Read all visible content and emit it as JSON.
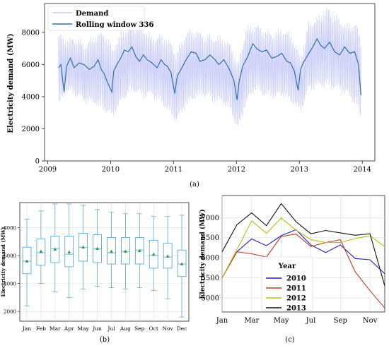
{
  "chart_data": [
    {
      "type": "line",
      "panel_label": "(a)",
      "ylabel": "Electricity demand (MW)",
      "xticks": [
        "2009",
        "2010",
        "2011",
        "2012",
        "2013",
        "2014"
      ],
      "yticks": [
        "0",
        "2000",
        "4000",
        "6000",
        "8000"
      ],
      "xlim": [
        2008.95,
        2014.2
      ],
      "ylim": [
        0,
        9800
      ],
      "legend": [
        "Demand",
        "Rolling window 336"
      ],
      "legend_position": "top-left",
      "colors": {
        "demand": "#c9cdf7",
        "rolling": "#2f6fad"
      },
      "series": [
        {
          "name": "Rolling window 336",
          "x": [
            2009.17,
            2009.21,
            2009.26,
            2009.3,
            2009.36,
            2009.42,
            2009.5,
            2009.58,
            2009.66,
            2009.74,
            2009.8,
            2009.85,
            2009.9,
            2009.96,
            2010.02,
            2010.05,
            2010.1,
            2010.16,
            2010.22,
            2010.28,
            2010.34,
            2010.4,
            2010.46,
            2010.52,
            2010.58,
            2010.66,
            2010.74,
            2010.8,
            2010.86,
            2010.9,
            2010.96,
            2011.02,
            2011.06,
            2011.12,
            2011.2,
            2011.28,
            2011.36,
            2011.42,
            2011.5,
            2011.58,
            2011.66,
            2011.72,
            2011.8,
            2011.86,
            2011.9,
            2011.96,
            2012.01,
            2012.04,
            2012.1,
            2012.18,
            2012.26,
            2012.32,
            2012.4,
            2012.48,
            2012.56,
            2012.64,
            2012.72,
            2012.8,
            2012.86,
            2012.92,
            2012.98,
            2013.02,
            2013.06,
            2013.12,
            2013.2,
            2013.28,
            2013.34,
            2013.4,
            2013.48,
            2013.56,
            2013.64,
            2013.72,
            2013.8,
            2013.88,
            2013.94,
            2013.98
          ],
          "values": [
            5800,
            6000,
            4300,
            5900,
            6400,
            5800,
            6100,
            6000,
            5700,
            5900,
            6300,
            5700,
            5400,
            4800,
            4300,
            5600,
            6000,
            6400,
            6900,
            6800,
            7100,
            6500,
            6200,
            6600,
            6300,
            6100,
            5800,
            6300,
            6000,
            5900,
            5500,
            4200,
            5300,
            5700,
            6300,
            6800,
            6700,
            6200,
            6300,
            6600,
            6300,
            6000,
            6300,
            5900,
            5600,
            5000,
            3800,
            4900,
            5900,
            6500,
            7300,
            7000,
            6800,
            6900,
            6400,
            6500,
            6700,
            6200,
            6100,
            5600,
            4400,
            5700,
            6100,
            6500,
            7000,
            7600,
            7200,
            7000,
            7400,
            6800,
            6600,
            7100,
            6700,
            6800,
            6000,
            4100
          ]
        }
      ],
      "demand_envelope": {
        "name": "Demand",
        "x": [
          2009.17,
          2009.3,
          2009.45,
          2009.6,
          2009.75,
          2009.9,
          2010.03,
          2010.2,
          2010.35,
          2010.5,
          2010.65,
          2010.8,
          2010.95,
          2011.05,
          2011.2,
          2011.35,
          2011.5,
          2011.65,
          2011.8,
          2011.92,
          2012.02,
          2012.15,
          2012.3,
          2012.45,
          2012.6,
          2012.75,
          2012.9,
          2013.02,
          2013.15,
          2013.3,
          2013.45,
          2013.6,
          2013.75,
          2013.9,
          2013.98
        ],
        "upper": [
          8100,
          7700,
          7900,
          7400,
          8000,
          8200,
          7200,
          8300,
          8700,
          8500,
          7900,
          8000,
          7600,
          6900,
          8200,
          8300,
          8000,
          7900,
          7800,
          7400,
          6200,
          8400,
          8700,
          8300,
          8100,
          8400,
          7900,
          6600,
          8800,
          9100,
          9700,
          9100,
          8600,
          8800,
          7700
        ],
        "lower": [
          3200,
          4200,
          3900,
          3500,
          3400,
          3000,
          2600,
          3700,
          4200,
          3900,
          3900,
          3500,
          2800,
          2300,
          3300,
          3800,
          3900,
          3600,
          3400,
          2900,
          1700,
          3400,
          4300,
          3900,
          3800,
          3900,
          3400,
          2900,
          4300,
          4500,
          4500,
          4300,
          4000,
          3400,
          2400
        ]
      }
    },
    {
      "type": "box",
      "panel_label": "(b)",
      "ylabel": "Electricity demand (MW)",
      "categories": [
        "Jan",
        "Feb",
        "Mar",
        "Apr",
        "May",
        "Jun",
        "Jul",
        "Aug",
        "Sep",
        "Oct",
        "Nov",
        "Dec"
      ],
      "yticks": [
        "2000",
        "4000",
        "6000",
        "8000"
      ],
      "ylim": [
        1300,
        9800
      ],
      "grid": true,
      "colors": {
        "box": "#4a9fd6",
        "mean": "#2e9e3e"
      },
      "boxes": [
        {
          "min": 2400,
          "q1": 4700,
          "median": 5600,
          "q3": 6600,
          "max": 8600,
          "mean": 5600
        },
        {
          "min": 4000,
          "q1": 5300,
          "median": 6200,
          "q3": 7200,
          "max": 9200,
          "mean": 6300
        },
        {
          "min": 3400,
          "q1": 5500,
          "median": 6500,
          "q3": 7400,
          "max": 9700,
          "mean": 6450
        },
        {
          "min": 3000,
          "q1": 5200,
          "median": 6100,
          "q3": 7400,
          "max": 9700,
          "mean": 6250
        },
        {
          "min": 3600,
          "q1": 5600,
          "median": 6600,
          "q3": 7600,
          "max": 9600,
          "mean": 6600
        },
        {
          "min": 3800,
          "q1": 5500,
          "median": 6500,
          "q3": 7500,
          "max": 9300,
          "mean": 6500
        },
        {
          "min": 3700,
          "q1": 5400,
          "median": 6200,
          "q3": 7300,
          "max": 9100,
          "mean": 6300
        },
        {
          "min": 3600,
          "q1": 5400,
          "median": 6300,
          "q3": 7300,
          "max": 9000,
          "mean": 6300
        },
        {
          "min": 3700,
          "q1": 5400,
          "median": 6400,
          "q3": 7300,
          "max": 9000,
          "mean": 6350
        },
        {
          "min": 3500,
          "q1": 5100,
          "median": 6000,
          "q3": 7100,
          "max": 8800,
          "mean": 6100
        },
        {
          "min": 2900,
          "q1": 5100,
          "median": 5900,
          "q3": 6900,
          "max": 8800,
          "mean": 5950
        },
        {
          "min": 1600,
          "q1": 4500,
          "median": 5400,
          "q3": 6400,
          "max": 8900,
          "mean": 5400
        }
      ]
    },
    {
      "type": "line",
      "panel_label": "(c)",
      "ylabel": "Electricity demand (MW)",
      "xticks": [
        "Jan",
        "Mar",
        "May",
        "Jul",
        "Sep",
        "Nov"
      ],
      "yticks": [
        "5000",
        "5500",
        "6000",
        "6500",
        "7000"
      ],
      "categories": [
        "Jan",
        "Feb",
        "Mar",
        "Apr",
        "May",
        "Jun",
        "Jul",
        "Aug",
        "Sep",
        "Oct",
        "Nov",
        "Dec"
      ],
      "ylim": [
        4650,
        7550
      ],
      "grid": true,
      "legend_title": "Year",
      "legend_position": "bottom-left",
      "series": [
        {
          "name": "2010",
          "color": "#2020d0",
          "values": [
            5500,
            6150,
            6470,
            6300,
            6550,
            6700,
            6320,
            6130,
            6320,
            5980,
            5950,
            5600
          ]
        },
        {
          "name": "2011",
          "color": "#c23a1a",
          "values": [
            5500,
            6150,
            6100,
            6020,
            6530,
            6590,
            6280,
            6380,
            6450,
            5650,
            5180,
            4750
          ]
        },
        {
          "name": "2012",
          "color": "#b8bf10",
          "values": [
            5500,
            6200,
            6920,
            6610,
            6990,
            6690,
            6450,
            6380,
            6380,
            6480,
            6550,
            6280
          ]
        },
        {
          "name": "2013",
          "color": "#111111",
          "values": [
            6150,
            6820,
            7120,
            6800,
            7350,
            6900,
            6600,
            6680,
            6620,
            6560,
            6600,
            5300
          ]
        }
      ]
    }
  ]
}
